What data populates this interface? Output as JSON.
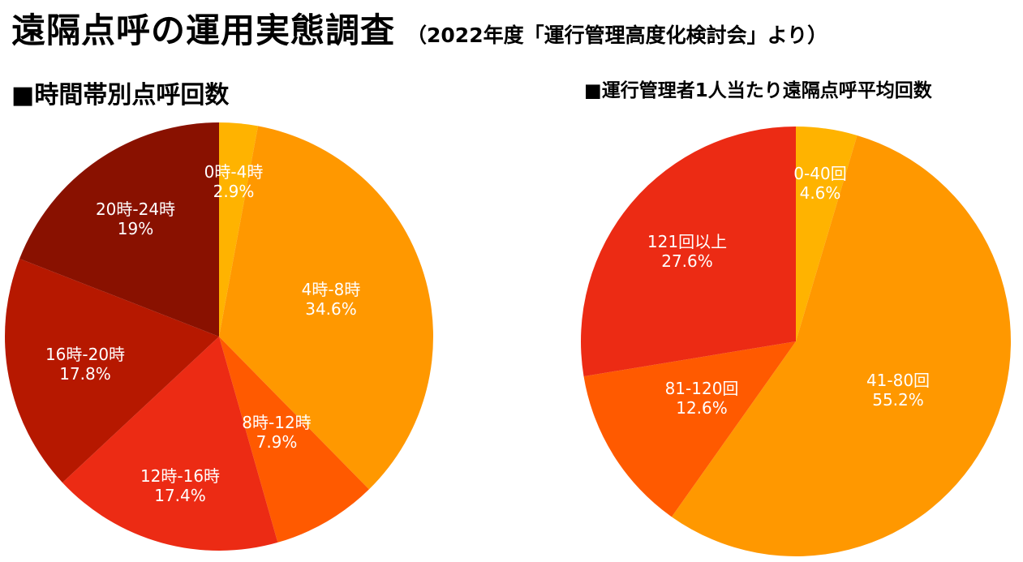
{
  "header": {
    "title": "遠隔点呼の運用実態調査",
    "subtitle": "（2022年度「運行管理高度化検討会」より）"
  },
  "chart_data": [
    {
      "type": "pie",
      "title": "■時間帯別点呼回数",
      "slices": [
        {
          "label": "0時-4時",
          "value": 2.9,
          "display": "2.9%",
          "color": "#FFB300"
        },
        {
          "label": "4時-8時",
          "value": 34.6,
          "display": "34.6%",
          "color": "#FF9800"
        },
        {
          "label": "8時-12時",
          "value": 7.9,
          "display": "7.9%",
          "color": "#FF5A00"
        },
        {
          "label": "12時-16時",
          "value": 17.4,
          "display": "17.4%",
          "color": "#EC2B14"
        },
        {
          "label": "16時-20時",
          "value": 17.8,
          "display": "17.8%",
          "color": "#B61800"
        },
        {
          "label": "20時-24時",
          "value": 19,
          "display": "19%",
          "color": "#891100"
        }
      ]
    },
    {
      "type": "pie",
      "title": "■運行管理者1人当たり遠隔点呼平均回数",
      "slices": [
        {
          "label": "0-40回",
          "value": 4.6,
          "display": "4.6%",
          "color": "#FFB300"
        },
        {
          "label": "41-80回",
          "value": 55.2,
          "display": "55.2%",
          "color": "#FF9800"
        },
        {
          "label": "81-120回",
          "value": 12.6,
          "display": "12.6%",
          "color": "#FF5A00"
        },
        {
          "label": "121回以上",
          "value": 27.6,
          "display": "27.6%",
          "color": "#EC2B14"
        }
      ]
    }
  ]
}
